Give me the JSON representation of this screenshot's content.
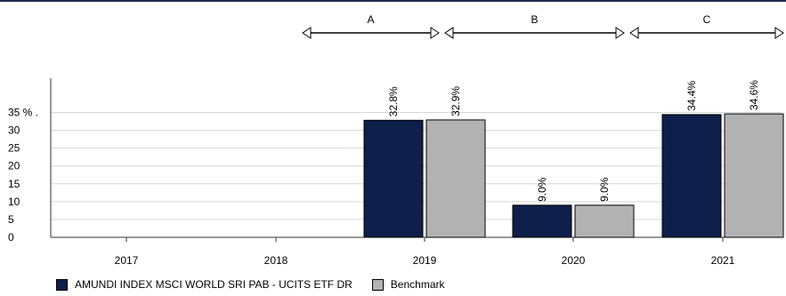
{
  "chart_data": {
    "type": "bar",
    "categories": [
      "2017",
      "2018",
      "2019",
      "2020",
      "2021"
    ],
    "series": [
      {
        "name": "AMUNDI INDEX MSCI WORLD SRI PAB - UCITS ETF DR",
        "color": "#0d1f4a",
        "values": [
          null,
          null,
          32.8,
          9.0,
          34.4
        ],
        "labels": [
          "",
          "",
          "32.8%",
          "9.0%",
          "34.4%"
        ]
      },
      {
        "name": "Benchmark",
        "color": "#b2b2b2",
        "values": [
          null,
          null,
          32.9,
          9.0,
          34.6
        ],
        "labels": [
          "",
          "",
          "32.9%",
          "9.0%",
          "34.6%"
        ]
      }
    ],
    "ylim": [
      0,
      35
    ],
    "yticks": [
      0,
      5,
      10,
      15,
      20,
      25,
      30,
      35
    ],
    "ytick_labels": [
      "0",
      "5",
      "10",
      "15",
      "20",
      "25",
      "30",
      "35 % ."
    ],
    "grid": true,
    "legend_position": "bottom-left",
    "periods": [
      {
        "label": "A",
        "from": "2019",
        "to": "2019"
      },
      {
        "label": "B",
        "from": "2020",
        "to": "2020"
      },
      {
        "label": "C",
        "from": "2021",
        "to": "2021"
      }
    ]
  }
}
